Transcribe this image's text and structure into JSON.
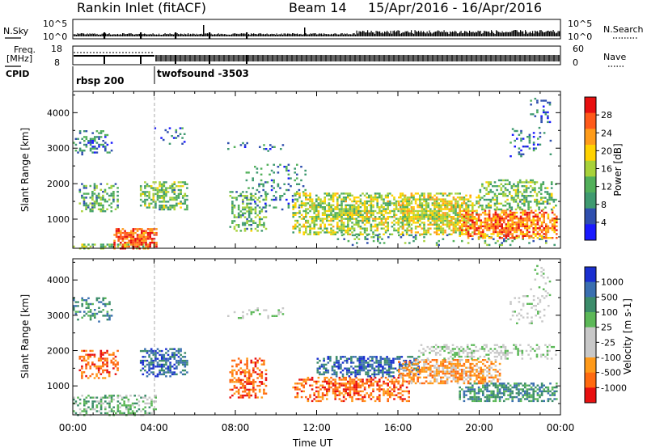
{
  "header": {
    "title": "Rankin Inlet (fitACF)",
    "beam": "Beam 14",
    "dates": "15/Apr/2016 - 16/Apr/2016"
  },
  "nsky_panel": {
    "left_label": "N.Sky",
    "right_label": "N.Search",
    "left_ticks": [
      "10^5",
      "10^0"
    ],
    "right_ticks": [
      "10^5",
      "10^0"
    ]
  },
  "freq_panel": {
    "left_label_1": "Freq.",
    "left_label_2": "[MHz]",
    "right_label": "Nave",
    "left_ticks": [
      "18",
      "8"
    ],
    "right_ticks": [
      "60",
      "0"
    ]
  },
  "cpid": {
    "label": "CPID",
    "segments": [
      {
        "name": "rbsp 200",
        "start_hour": 0,
        "end_hour": 4
      },
      {
        "name": "twofsound -3503",
        "start_hour": 4,
        "end_hour": 24
      }
    ]
  },
  "xaxis": {
    "label": "Time UT",
    "ticks": [
      "00:00",
      "04:00",
      "08:00",
      "12:00",
      "16:00",
      "20:00",
      "00:00"
    ]
  },
  "colors": {
    "power": [
      "#1a1aff",
      "#2f4fae",
      "#3f9a70",
      "#52b05a",
      "#a8d23a",
      "#ffd200",
      "#ff9c1a",
      "#ff5a1a",
      "#e81010"
    ],
    "velocity": [
      "#1a2fd0",
      "#3a6fb0",
      "#3c8c6a",
      "#5cb858",
      "#c8c8c8",
      "#c8c8c8",
      "#ff9a1a",
      "#ff6a10",
      "#e81010"
    ]
  },
  "chart_data": [
    {
      "type": "heatmap",
      "name": "power",
      "ylabel": "Slant Range [km]",
      "xlim": [
        0,
        24
      ],
      "ylim": [
        180,
        4600
      ],
      "yticks": [
        1000,
        2000,
        3000,
        4000
      ],
      "colorbar": {
        "label": "Power [dB]",
        "ticks": [
          4,
          8,
          12,
          16,
          20,
          24,
          28
        ],
        "range": [
          0,
          32
        ]
      },
      "regions": [
        {
          "t0": 0.0,
          "t1": 1.9,
          "r0": 2850,
          "r1": 3550,
          "v": 8,
          "d": 0.45
        },
        {
          "t0": 0.3,
          "t1": 2.2,
          "r0": 1250,
          "r1": 2050,
          "v": 11,
          "d": 0.5
        },
        {
          "t0": 0.0,
          "t1": 4.0,
          "r0": 200,
          "r1": 320,
          "v": 14,
          "d": 0.45
        },
        {
          "t0": 2.0,
          "t1": 4.1,
          "r0": 200,
          "r1": 780,
          "v": 27,
          "d": 0.9
        },
        {
          "t0": 3.3,
          "t1": 5.6,
          "r0": 1300,
          "r1": 2100,
          "v": 13,
          "d": 0.65
        },
        {
          "t0": 4.0,
          "t1": 5.6,
          "r0": 3150,
          "r1": 3600,
          "v": 7,
          "d": 0.2
        },
        {
          "t0": 7.7,
          "t1": 9.5,
          "r0": 700,
          "r1": 1800,
          "v": 12,
          "d": 0.55
        },
        {
          "t0": 8.5,
          "t1": 11.5,
          "r0": 1300,
          "r1": 2600,
          "v": 8,
          "d": 0.2
        },
        {
          "t0": 7.5,
          "t1": 10.5,
          "r0": 2950,
          "r1": 3250,
          "v": 7,
          "d": 0.15
        },
        {
          "t0": 10.8,
          "t1": 16.5,
          "r0": 600,
          "r1": 1800,
          "v": 16,
          "d": 0.75
        },
        {
          "t0": 13.0,
          "t1": 23.8,
          "r0": 300,
          "r1": 600,
          "v": 10,
          "d": 0.2
        },
        {
          "t0": 16.0,
          "t1": 20.0,
          "r0": 600,
          "r1": 1800,
          "v": 18,
          "d": 0.8
        },
        {
          "t0": 19.0,
          "t1": 23.8,
          "r0": 500,
          "r1": 1300,
          "v": 25,
          "d": 0.85
        },
        {
          "t0": 20.0,
          "t1": 23.8,
          "r0": 1300,
          "r1": 2150,
          "v": 13,
          "d": 0.6
        },
        {
          "t0": 21.5,
          "t1": 23.5,
          "r0": 2800,
          "r1": 3600,
          "v": 6,
          "d": 0.25
        },
        {
          "t0": 22.5,
          "t1": 23.5,
          "r0": 3600,
          "r1": 4450,
          "v": 6,
          "d": 0.2
        }
      ]
    },
    {
      "type": "heatmap",
      "name": "velocity",
      "ylabel": "Slant Range [km]",
      "xlim": [
        0,
        24
      ],
      "ylim": [
        180,
        4600
      ],
      "yticks": [
        1000,
        2000,
        3000,
        4000
      ],
      "colorbar": {
        "label": "Velocity [m s-1]",
        "ticks": [
          1000,
          500,
          100,
          25,
          -25,
          -100,
          -500,
          -1000
        ]
      },
      "regions": [
        {
          "t0": 0.0,
          "t1": 1.9,
          "r0": 2850,
          "r1": 3550,
          "v": 2,
          "d": 0.4
        },
        {
          "t0": 0.3,
          "t1": 2.2,
          "r0": 1250,
          "r1": 2050,
          "v": -3,
          "d": 0.5
        },
        {
          "t0": 0.0,
          "t1": 4.1,
          "r0": 200,
          "r1": 780,
          "v": 1,
          "d": 0.5
        },
        {
          "t0": 3.3,
          "t1": 5.6,
          "r0": 1300,
          "r1": 2100,
          "v": 3,
          "d": 0.7
        },
        {
          "t0": 7.7,
          "t1": 9.5,
          "r0": 700,
          "r1": 1800,
          "v": -3,
          "d": 0.55
        },
        {
          "t0": 7.5,
          "t1": 10.5,
          "r0": 2950,
          "r1": 3250,
          "v": 0,
          "d": 0.2
        },
        {
          "t0": 10.8,
          "t1": 16.5,
          "r0": 600,
          "r1": 1300,
          "v": -3,
          "d": 0.65
        },
        {
          "t0": 12.0,
          "t1": 17.0,
          "r0": 1300,
          "r1": 1900,
          "v": 3,
          "d": 0.7
        },
        {
          "t0": 16.0,
          "t1": 21.0,
          "r0": 1100,
          "r1": 1800,
          "v": -2,
          "d": 0.75
        },
        {
          "t0": 19.0,
          "t1": 23.8,
          "r0": 600,
          "r1": 1100,
          "v": 2,
          "d": 0.7
        },
        {
          "t0": 17.0,
          "t1": 23.8,
          "r0": 1800,
          "r1": 2200,
          "v": 0,
          "d": 0.45
        },
        {
          "t0": 21.5,
          "t1": 23.5,
          "r0": 2800,
          "r1": 3600,
          "v": 0,
          "d": 0.2
        },
        {
          "t0": 22.5,
          "t1": 23.5,
          "r0": 3600,
          "r1": 4450,
          "v": 0,
          "d": 0.15
        }
      ]
    }
  ]
}
